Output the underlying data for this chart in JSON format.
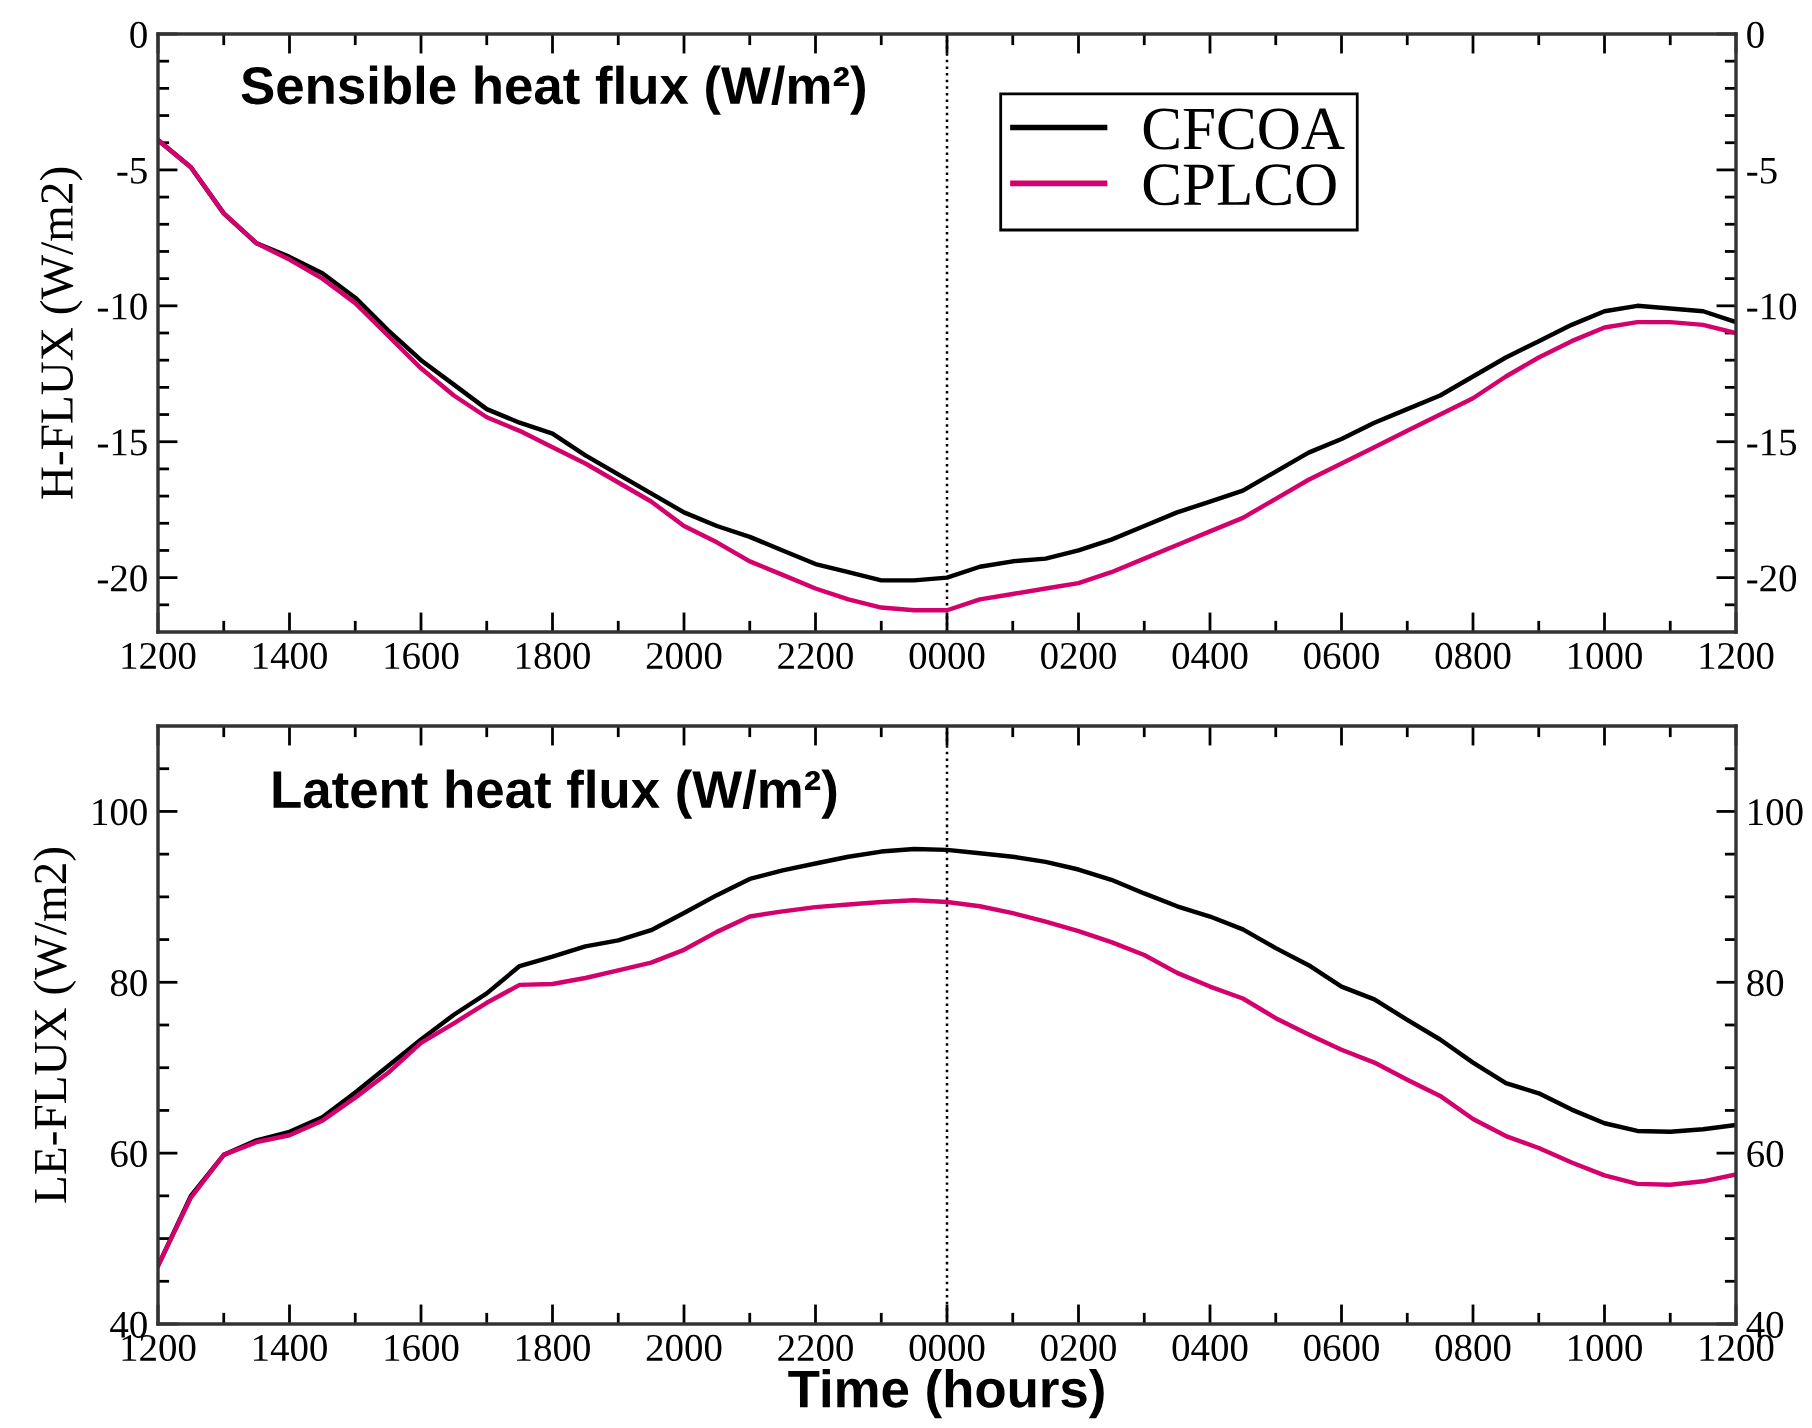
{
  "chart_data": [
    {
      "type": "line",
      "title": "Sensible heat flux (W/m²)",
      "ylabel": "H-FLUX (W/m2)",
      "categories": [
        "1200",
        null,
        null,
        null,
        "1400",
        null,
        null,
        null,
        "1600",
        null,
        null,
        null,
        "1800",
        null,
        null,
        null,
        "2000",
        null,
        null,
        null,
        "2200",
        null,
        null,
        null,
        "0000",
        null,
        null,
        null,
        "0200",
        null,
        null,
        null,
        "0400",
        null,
        null,
        null,
        "0600",
        null,
        null,
        null,
        "0800",
        null,
        null,
        null,
        "1000",
        null,
        null,
        null,
        "1200"
      ],
      "series": [
        {
          "name": "CFCOA",
          "color": "#000000",
          "values": [
            -3.9,
            -4.9,
            -6.6,
            -7.7,
            -8.2,
            -8.8,
            -9.7,
            -10.9,
            -12.0,
            -12.9,
            -13.8,
            -14.3,
            -14.7,
            -15.5,
            -16.2,
            -16.9,
            -17.6,
            -18.1,
            -18.5,
            -19.0,
            -19.5,
            -19.8,
            -20.1,
            -20.1,
            -20.0,
            -19.6,
            -19.4,
            -19.3,
            -19.0,
            -18.6,
            -18.1,
            -17.6,
            -17.2,
            -16.8,
            -16.1,
            -15.4,
            -14.9,
            -14.3,
            -13.8,
            -13.3,
            -12.6,
            -11.9,
            -11.3,
            -10.7,
            -10.2,
            -10.0,
            -10.1,
            -10.2,
            -10.6
          ]
        },
        {
          "name": "CPLCO",
          "color": "#d4006c",
          "values": [
            -3.9,
            -4.9,
            -6.6,
            -7.7,
            -8.3,
            -9.0,
            -9.9,
            -11.1,
            -12.3,
            -13.3,
            -14.1,
            -14.6,
            -15.2,
            -15.8,
            -16.5,
            -17.2,
            -18.1,
            -18.7,
            -19.4,
            -19.9,
            -20.4,
            -20.8,
            -21.1,
            -21.2,
            -21.2,
            -20.8,
            -20.6,
            -20.4,
            -20.2,
            -19.8,
            -19.3,
            -18.8,
            -18.3,
            -17.8,
            -17.1,
            -16.4,
            -15.8,
            -15.2,
            -14.6,
            -14.0,
            -13.4,
            -12.6,
            -11.9,
            -11.3,
            -10.8,
            -10.6,
            -10.6,
            -10.7,
            -11.0
          ]
        }
      ],
      "ylim": [
        -22,
        0
      ],
      "yticks": [
        0,
        {
          "value": -1,
          "label": null
        },
        {
          "value": -2,
          "label": null
        },
        {
          "value": -3,
          "label": null
        },
        {
          "value": -4,
          "label": null
        },
        -5,
        {
          "value": -6,
          "label": null
        },
        {
          "value": -7,
          "label": null
        },
        {
          "value": -8,
          "label": null
        },
        {
          "value": -9,
          "label": null
        },
        -10,
        {
          "value": -11,
          "label": null
        },
        {
          "value": -12,
          "label": null
        },
        {
          "value": -13,
          "label": null
        },
        {
          "value": -14,
          "label": null
        },
        -15,
        {
          "value": -16,
          "label": null
        },
        {
          "value": -17,
          "label": null
        },
        {
          "value": -18,
          "label": null
        },
        {
          "value": -19,
          "label": null
        },
        -20,
        {
          "value": -21,
          "label": null
        }
      ],
      "y2lim": [
        -22,
        0
      ],
      "y2ticks": [
        0,
        {
          "value": -1,
          "label": null
        },
        {
          "value": -2,
          "label": null
        },
        {
          "value": -3,
          "label": null
        },
        {
          "value": -4,
          "label": null
        },
        -5,
        {
          "value": -6,
          "label": null
        },
        {
          "value": -7,
          "label": null
        },
        {
          "value": -8,
          "label": null
        },
        {
          "value": -9,
          "label": null
        },
        -10,
        {
          "value": -11,
          "label": null
        },
        {
          "value": -12,
          "label": null
        },
        {
          "value": -13,
          "label": null
        },
        {
          "value": -14,
          "label": null
        },
        -15,
        {
          "value": -16,
          "label": null
        },
        {
          "value": -17,
          "label": null
        },
        {
          "value": -18,
          "label": null
        },
        {
          "value": -19,
          "label": null
        },
        -20,
        {
          "value": -21,
          "label": null
        }
      ],
      "ref_lines": [
        {
          "axis": "x",
          "value": "0000",
          "line_style": "dotted",
          "color": "#000000"
        }
      ],
      "legend": "top"
    },
    {
      "type": "line",
      "title": "Latent heat flux (W/m²)",
      "xlabel": "Time (hours)",
      "ylabel": "LE-FLUX (W/m2)",
      "categories": [
        "1200",
        null,
        null,
        null,
        "1400",
        null,
        null,
        null,
        "1600",
        null,
        null,
        null,
        "1800",
        null,
        null,
        null,
        "2000",
        null,
        null,
        null,
        "2200",
        null,
        null,
        null,
        "0000",
        null,
        null,
        null,
        "0200",
        null,
        null,
        null,
        "0400",
        null,
        null,
        null,
        "0600",
        null,
        null,
        null,
        "0800",
        null,
        null,
        null,
        "1000",
        null,
        null,
        null,
        "1200"
      ],
      "series": [
        {
          "color": "#000000",
          "values": [
            46.8,
            55.0,
            59.8,
            61.5,
            62.5,
            64.2,
            67.1,
            70.2,
            73.3,
            76.2,
            78.7,
            81.9,
            83.0,
            84.2,
            84.9,
            86.1,
            88.1,
            90.2,
            92.1,
            93.1,
            93.9,
            94.7,
            95.3,
            95.6,
            95.5,
            95.1,
            94.7,
            94.1,
            93.2,
            92.0,
            90.4,
            88.9,
            87.7,
            86.2,
            84.0,
            82.0,
            79.5,
            78.0,
            75.6,
            73.3,
            70.6,
            68.2,
            67.0,
            65.1,
            63.5,
            62.6,
            62.5,
            62.8,
            63.3
          ]
        },
        {
          "color": "#d4006c",
          "values": [
            46.8,
            54.8,
            59.8,
            61.3,
            62.1,
            63.8,
            66.5,
            69.4,
            72.9,
            75.2,
            77.6,
            79.7,
            79.8,
            80.5,
            81.4,
            82.3,
            83.8,
            85.9,
            87.7,
            88.3,
            88.8,
            89.1,
            89.4,
            89.6,
            89.4,
            88.9,
            88.1,
            87.1,
            86.0,
            84.7,
            83.2,
            81.1,
            79.5,
            78.1,
            75.8,
            73.9,
            72.1,
            70.6,
            68.6,
            66.7,
            64.0,
            62.0,
            60.6,
            58.9,
            57.4,
            56.4,
            56.3,
            56.7,
            57.5
          ]
        }
      ],
      "ylim": [
        40,
        110
      ],
      "yticks": [
        40,
        {
          "value": 45,
          "label": null
        },
        {
          "value": 50,
          "label": null
        },
        {
          "value": 55,
          "label": null
        },
        60,
        {
          "value": 65,
          "label": null
        },
        {
          "value": 70,
          "label": null
        },
        {
          "value": 75,
          "label": null
        },
        80,
        {
          "value": 85,
          "label": null
        },
        {
          "value": 90,
          "label": null
        },
        {
          "value": 95,
          "label": null
        },
        100,
        {
          "value": 105,
          "label": null
        }
      ],
      "y2lim": [
        40,
        110
      ],
      "y2ticks": [
        40,
        {
          "value": 45,
          "label": null
        },
        {
          "value": 50,
          "label": null
        },
        {
          "value": 55,
          "label": null
        },
        60,
        {
          "value": 65,
          "label": null
        },
        {
          "value": 70,
          "label": null
        },
        {
          "value": 75,
          "label": null
        },
        80,
        {
          "value": 85,
          "label": null
        },
        {
          "value": 90,
          "label": null
        },
        {
          "value": 95,
          "label": null
        },
        100,
        {
          "value": 105,
          "label": null
        }
      ],
      "ref_lines": [
        {
          "axis": "x",
          "value": "0000",
          "line_style": "dotted",
          "color": "#000000"
        }
      ]
    }
  ]
}
